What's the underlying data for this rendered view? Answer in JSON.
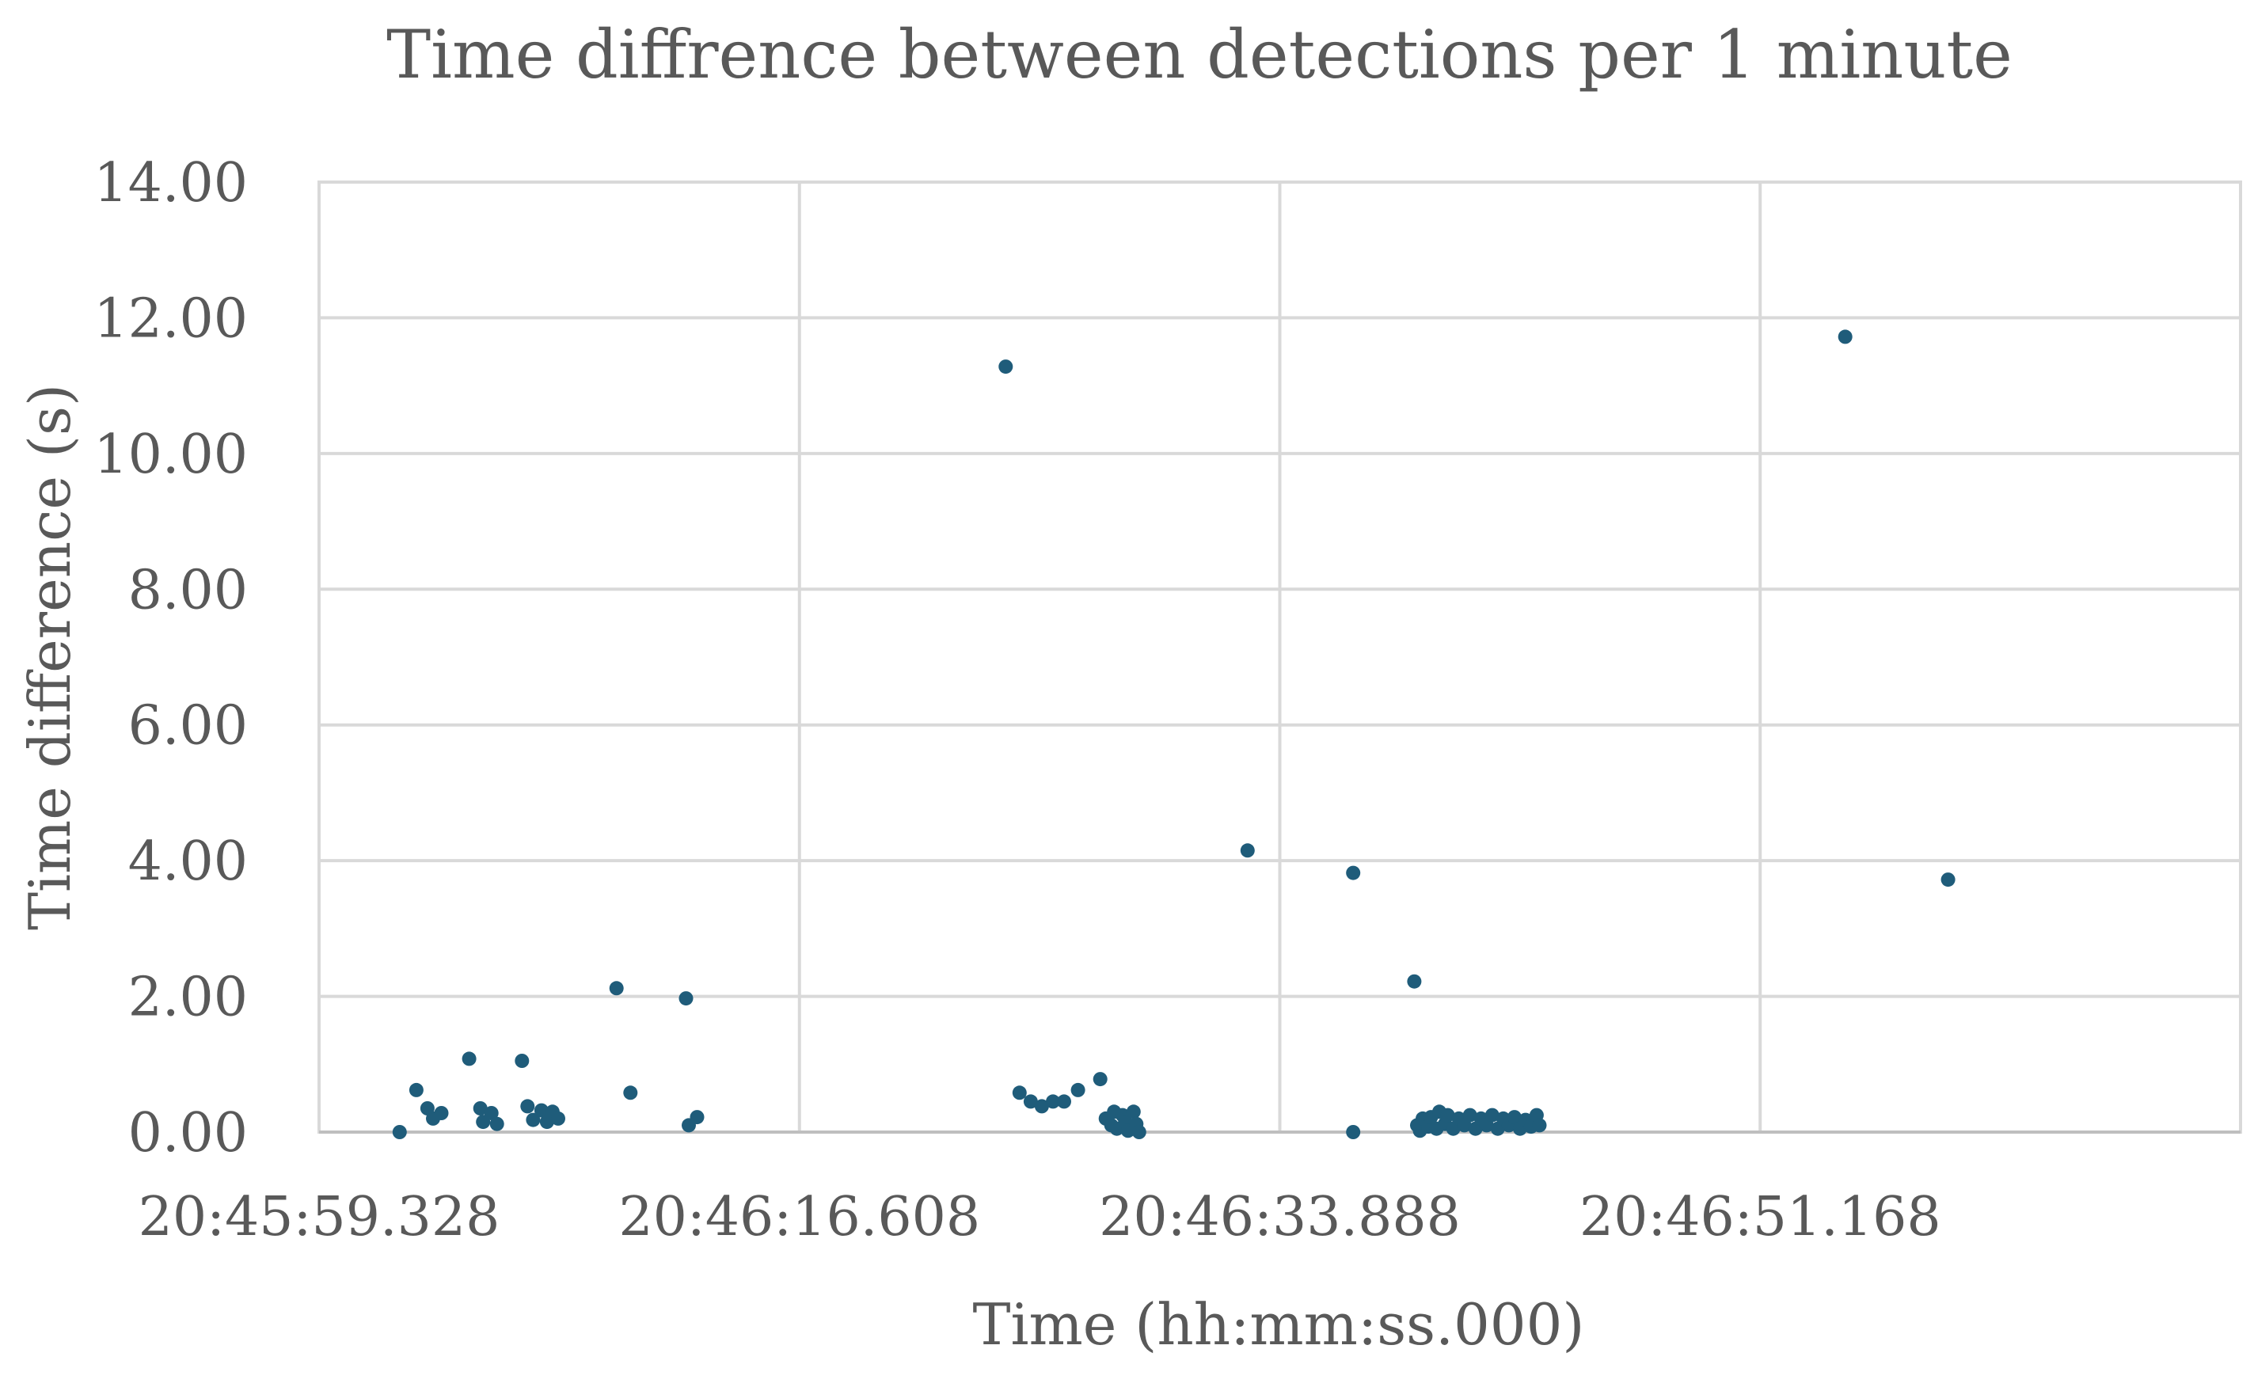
{
  "chart_data": {
    "type": "scatter",
    "title": "Time diffrence between detections per 1 minute",
    "xlabel": "Time (hh:mm:ss.000)",
    "ylabel": "Time difference (s)",
    "xlim": [
      0,
      69.12
    ],
    "ylim": [
      0,
      14
    ],
    "x_unit": "seconds after 20:45:59.328",
    "x_tick_values": [
      0,
      17.28,
      34.56,
      51.84
    ],
    "x_tick_labels": [
      "20:45:59.328",
      "20:46:16.608",
      "20:46:33.888",
      "20:46:51.168"
    ],
    "y_tick_values": [
      0,
      2,
      4,
      6,
      8,
      10,
      12,
      14
    ],
    "y_tick_labels": [
      "0.00",
      "2.00",
      "4.00",
      "6.00",
      "8.00",
      "10.00",
      "12.00",
      "14.00"
    ],
    "grid": true,
    "marker_color": "#1f5c7a",
    "series": [
      {
        "name": "Time difference",
        "points": [
          [
            2.9,
            0.0
          ],
          [
            3.5,
            0.62
          ],
          [
            3.9,
            0.35
          ],
          [
            4.1,
            0.2
          ],
          [
            4.4,
            0.28
          ],
          [
            5.4,
            1.08
          ],
          [
            5.8,
            0.35
          ],
          [
            5.9,
            0.15
          ],
          [
            6.2,
            0.28
          ],
          [
            6.4,
            0.12
          ],
          [
            7.3,
            1.05
          ],
          [
            7.5,
            0.38
          ],
          [
            7.7,
            0.18
          ],
          [
            8.0,
            0.32
          ],
          [
            8.2,
            0.15
          ],
          [
            8.4,
            0.3
          ],
          [
            8.6,
            0.2
          ],
          [
            10.7,
            2.12
          ],
          [
            11.2,
            0.58
          ],
          [
            13.2,
            1.97
          ],
          [
            13.3,
            0.1
          ],
          [
            13.6,
            0.22
          ],
          [
            24.7,
            11.28
          ],
          [
            25.2,
            0.58
          ],
          [
            25.6,
            0.45
          ],
          [
            26.0,
            0.38
          ],
          [
            26.4,
            0.45
          ],
          [
            26.8,
            0.45
          ],
          [
            27.3,
            0.62
          ],
          [
            28.1,
            0.78
          ],
          [
            28.3,
            0.2
          ],
          [
            28.5,
            0.1
          ],
          [
            28.6,
            0.3
          ],
          [
            28.7,
            0.05
          ],
          [
            28.9,
            0.25
          ],
          [
            29.0,
            0.15
          ],
          [
            29.1,
            0.02
          ],
          [
            29.3,
            0.3
          ],
          [
            29.4,
            0.12
          ],
          [
            29.5,
            0.0
          ],
          [
            33.4,
            4.15
          ],
          [
            37.2,
            3.82
          ],
          [
            37.2,
            0.0
          ],
          [
            39.4,
            2.22
          ],
          [
            39.5,
            0.1
          ],
          [
            39.6,
            0.02
          ],
          [
            39.7,
            0.2
          ],
          [
            39.9,
            0.08
          ],
          [
            40.0,
            0.22
          ],
          [
            40.2,
            0.05
          ],
          [
            40.3,
            0.3
          ],
          [
            40.5,
            0.12
          ],
          [
            40.6,
            0.25
          ],
          [
            40.8,
            0.05
          ],
          [
            41.0,
            0.2
          ],
          [
            41.2,
            0.1
          ],
          [
            41.4,
            0.25
          ],
          [
            41.6,
            0.05
          ],
          [
            41.8,
            0.2
          ],
          [
            42.0,
            0.1
          ],
          [
            42.2,
            0.25
          ],
          [
            42.4,
            0.05
          ],
          [
            42.6,
            0.2
          ],
          [
            42.8,
            0.1
          ],
          [
            43.0,
            0.22
          ],
          [
            43.2,
            0.05
          ],
          [
            43.4,
            0.18
          ],
          [
            43.6,
            0.08
          ],
          [
            43.8,
            0.25
          ],
          [
            43.9,
            0.1
          ],
          [
            54.9,
            11.72
          ],
          [
            58.6,
            3.72
          ]
        ]
      }
    ]
  }
}
